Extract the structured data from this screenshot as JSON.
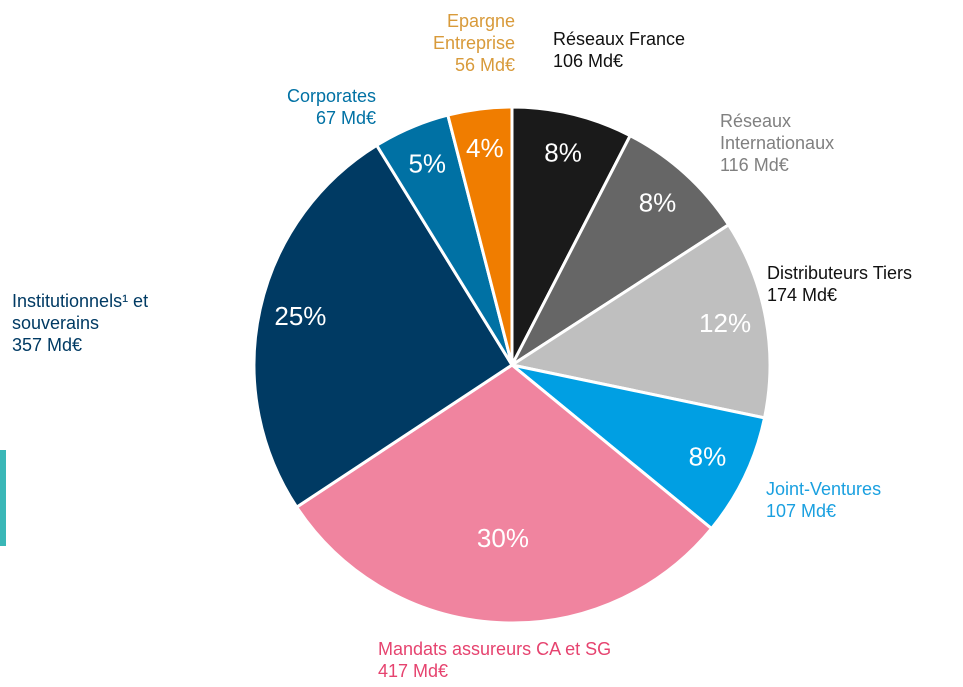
{
  "chart_data": {
    "type": "pie",
    "categories": [
      "Réseaux France",
      "Réseaux Internationaux",
      "Distributeurs Tiers",
      "Joint-Ventures",
      "Mandats assureurs CA et SG",
      "Institutionnels¹ et souverains",
      "Corporates",
      "Epargne Entreprise"
    ],
    "values": [
      106,
      116,
      174,
      107,
      417,
      357,
      67,
      56
    ],
    "value_labels": [
      "106 Md€",
      "116 Md€",
      "174 Md€",
      "107 Md€",
      "417 Md€",
      "357 Md€",
      "67 Md€",
      "56 Md€"
    ],
    "percent_labels": [
      "8%",
      "8%",
      "12%",
      "8%",
      "30%",
      "25%",
      "5%",
      "4%"
    ],
    "colors": [
      "#1a1a1a",
      "#666666",
      "#bfbfbf",
      "#009fe3",
      "#f0849f",
      "#003a63",
      "#0071a4",
      "#f07d00"
    ],
    "label_colors": [
      "#111111",
      "#808080",
      "#111111",
      "#1aa0e0",
      "#e6436f",
      "#003a63",
      "#0071a4",
      "#d89a3a"
    ]
  }
}
